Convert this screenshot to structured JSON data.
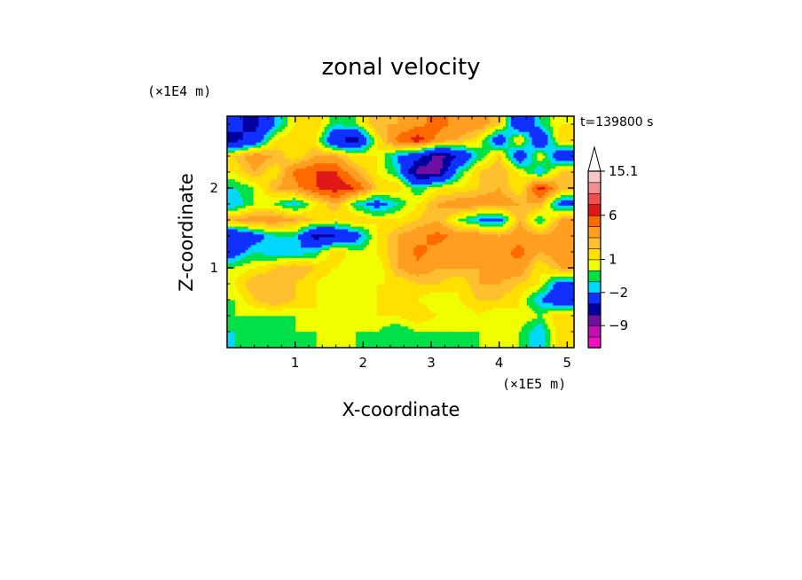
{
  "chart_data": {
    "type": "heatmap",
    "title": "zonal velocity",
    "xlabel": "X-coordinate",
    "ylabel": "Z-coordinate",
    "x_unit": "(×1E5 m)",
    "y_unit": "(×1E4 m)",
    "time_label": "t=139800 s",
    "xlim": [
      0,
      5.1
    ],
    "ylim": [
      0,
      2.9
    ],
    "x_ticks": [
      1,
      2,
      3,
      4,
      5
    ],
    "y_ticks": [
      1,
      2
    ],
    "colorbar": {
      "labeled_ticks": [
        {
          "value": 15.1,
          "label": "15.1"
        },
        {
          "value": 6,
          "label": "6"
        },
        {
          "value": 1,
          "label": "1"
        },
        {
          "value": -2,
          "label": "−2"
        },
        {
          "value": -9,
          "label": "−9"
        }
      ],
      "levels": [
        {
          "max": 15.1,
          "color": "#f8c8c8"
        },
        {
          "max": 12,
          "color": "#f09090"
        },
        {
          "max": 9,
          "color": "#f05050"
        },
        {
          "max": 7,
          "color": "#e01818"
        },
        {
          "max": 6,
          "color": "#ff6a00"
        },
        {
          "max": 4.5,
          "color": "#ff9e20"
        },
        {
          "max": 3,
          "color": "#ffc030"
        },
        {
          "max": 2,
          "color": "#ffe000"
        },
        {
          "max": 1,
          "color": "#f0ff00"
        },
        {
          "max": 0,
          "color": "#00e048"
        },
        {
          "max": -1,
          "color": "#00d8ff"
        },
        {
          "max": -2,
          "color": "#1030ff"
        },
        {
          "max": -5,
          "color": "#0000a0"
        },
        {
          "max": -7,
          "color": "#7010a0"
        },
        {
          "max": -9,
          "color": "#c010b0"
        },
        {
          "max": -11,
          "color": "#f010c0"
        }
      ]
    },
    "field": {
      "x": [
        0.1,
        0.4,
        0.7,
        1.0,
        1.3,
        1.6,
        1.9,
        2.2,
        2.5,
        2.8,
        3.1,
        3.4,
        3.7,
        4.0,
        4.3,
        4.6,
        4.9
      ],
      "z": [
        2.8,
        2.6,
        2.4,
        2.2,
        2.0,
        1.8,
        1.6,
        1.4,
        1.2,
        1.0,
        0.8,
        0.6,
        0.4,
        0.2
      ],
      "values": [
        [
          -4,
          -6,
          -2,
          1,
          2,
          -1,
          0,
          3,
          3,
          4,
          5,
          4,
          4,
          2,
          -5,
          -1,
          1
        ],
        [
          -6,
          -4,
          1,
          2,
          1,
          -5,
          -6,
          1,
          5,
          7,
          4,
          3,
          1,
          -4,
          2,
          -5,
          2
        ],
        [
          2,
          4,
          3,
          1,
          3,
          3,
          1,
          1,
          -2,
          -4,
          -8,
          -5,
          -1,
          2,
          -4,
          1,
          -4
        ],
        [
          1,
          3,
          1,
          5,
          6,
          6,
          3,
          1,
          -1,
          -8,
          -8,
          -1,
          2,
          3,
          1,
          -2,
          2
        ],
        [
          -1,
          0,
          3,
          4,
          6,
          7,
          6,
          2,
          2,
          -1,
          1,
          1,
          2,
          3,
          1,
          7,
          3
        ],
        [
          -2,
          0,
          0,
          -2,
          1,
          3,
          -1,
          -3,
          -1,
          1,
          3,
          4,
          4,
          4,
          3,
          3,
          -3
        ],
        [
          3,
          4,
          4,
          3,
          2,
          1,
          2,
          1,
          1,
          2,
          3,
          0,
          -2,
          -3,
          3,
          -1,
          3
        ],
        [
          -5,
          -3,
          -1,
          -1,
          -6,
          -5,
          -3,
          1,
          3,
          4,
          5,
          4,
          4,
          3,
          4,
          3,
          4
        ],
        [
          -3,
          -1,
          -2,
          -2,
          -1,
          2,
          0,
          1,
          3,
          5,
          4,
          4,
          4,
          4,
          5,
          3,
          4
        ],
        [
          0,
          1,
          2,
          3,
          2,
          1,
          0,
          0,
          3,
          4,
          3,
          3,
          3,
          4,
          4,
          1,
          3
        ],
        [
          1,
          3,
          3,
          2,
          1,
          0,
          0,
          1,
          1,
          2,
          2,
          1,
          3,
          3,
          2,
          1,
          -3
        ],
        [
          0,
          2,
          3,
          2,
          1,
          0,
          1,
          1,
          2,
          1,
          0,
          1,
          2,
          2,
          1,
          -2,
          -4
        ],
        [
          0,
          0,
          0,
          0,
          1,
          1,
          0,
          1,
          1,
          2,
          1,
          0,
          1,
          0,
          1,
          0,
          2
        ],
        [
          -1,
          0,
          0,
          0,
          0,
          1,
          0,
          0,
          -1,
          0,
          0,
          0,
          0,
          1,
          0,
          -2,
          2
        ]
      ]
    }
  }
}
